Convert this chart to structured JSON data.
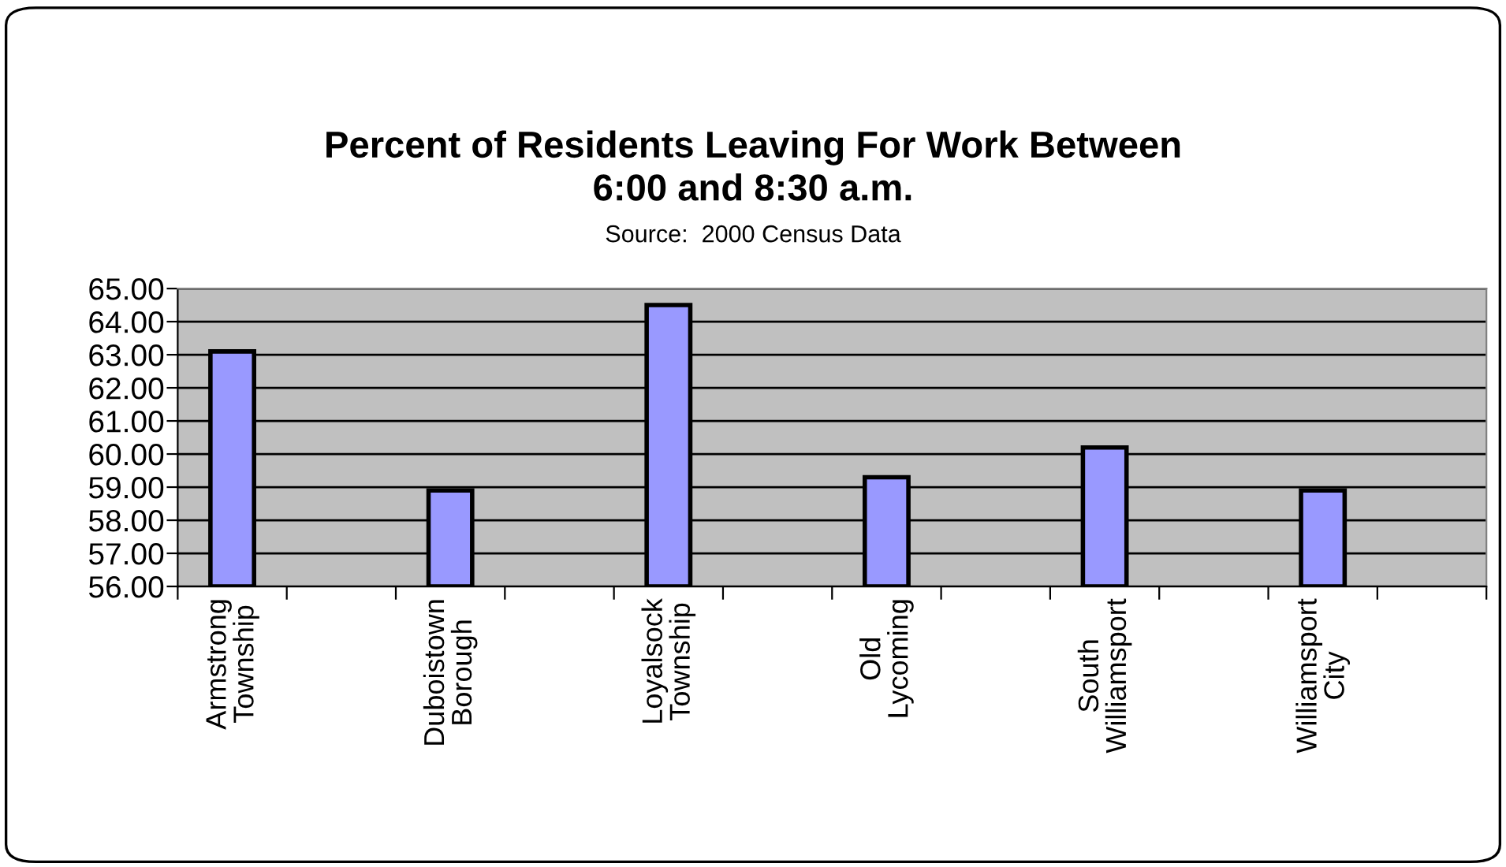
{
  "chart_data": {
    "type": "bar",
    "title": "Percent of Residents Leaving For Work Between\n6:00 and 8:30 a.m.",
    "subtitle": "Source:  2000 Census Data",
    "categories": [
      "Armstrong\nTownship",
      null,
      "Duboistown\nBorough",
      null,
      "Loyalsock\nTownship",
      null,
      "Old\nLycoming",
      null,
      "South\nWilliamsport",
      null,
      "Williamsport\nCity",
      null
    ],
    "values": [
      63.1,
      null,
      58.9,
      null,
      64.5,
      null,
      59.3,
      null,
      60.2,
      null,
      58.9,
      null
    ],
    "color": "#9999ff",
    "ylim": [
      56,
      65
    ],
    "yticks": [
      {
        "value": 56,
        "label": "56.00"
      },
      {
        "value": 57,
        "label": "57.00"
      },
      {
        "value": 58,
        "label": "58.00"
      },
      {
        "value": 59,
        "label": "59.00"
      },
      {
        "value": 60,
        "label": "60.00"
      },
      {
        "value": 61,
        "label": "61.00"
      },
      {
        "value": 62,
        "label": "62.00"
      },
      {
        "value": 63,
        "label": "63.00"
      },
      {
        "value": 64,
        "label": "64.00"
      },
      {
        "value": 65,
        "label": "65.00"
      }
    ],
    "grid": "y",
    "legend": false
  }
}
